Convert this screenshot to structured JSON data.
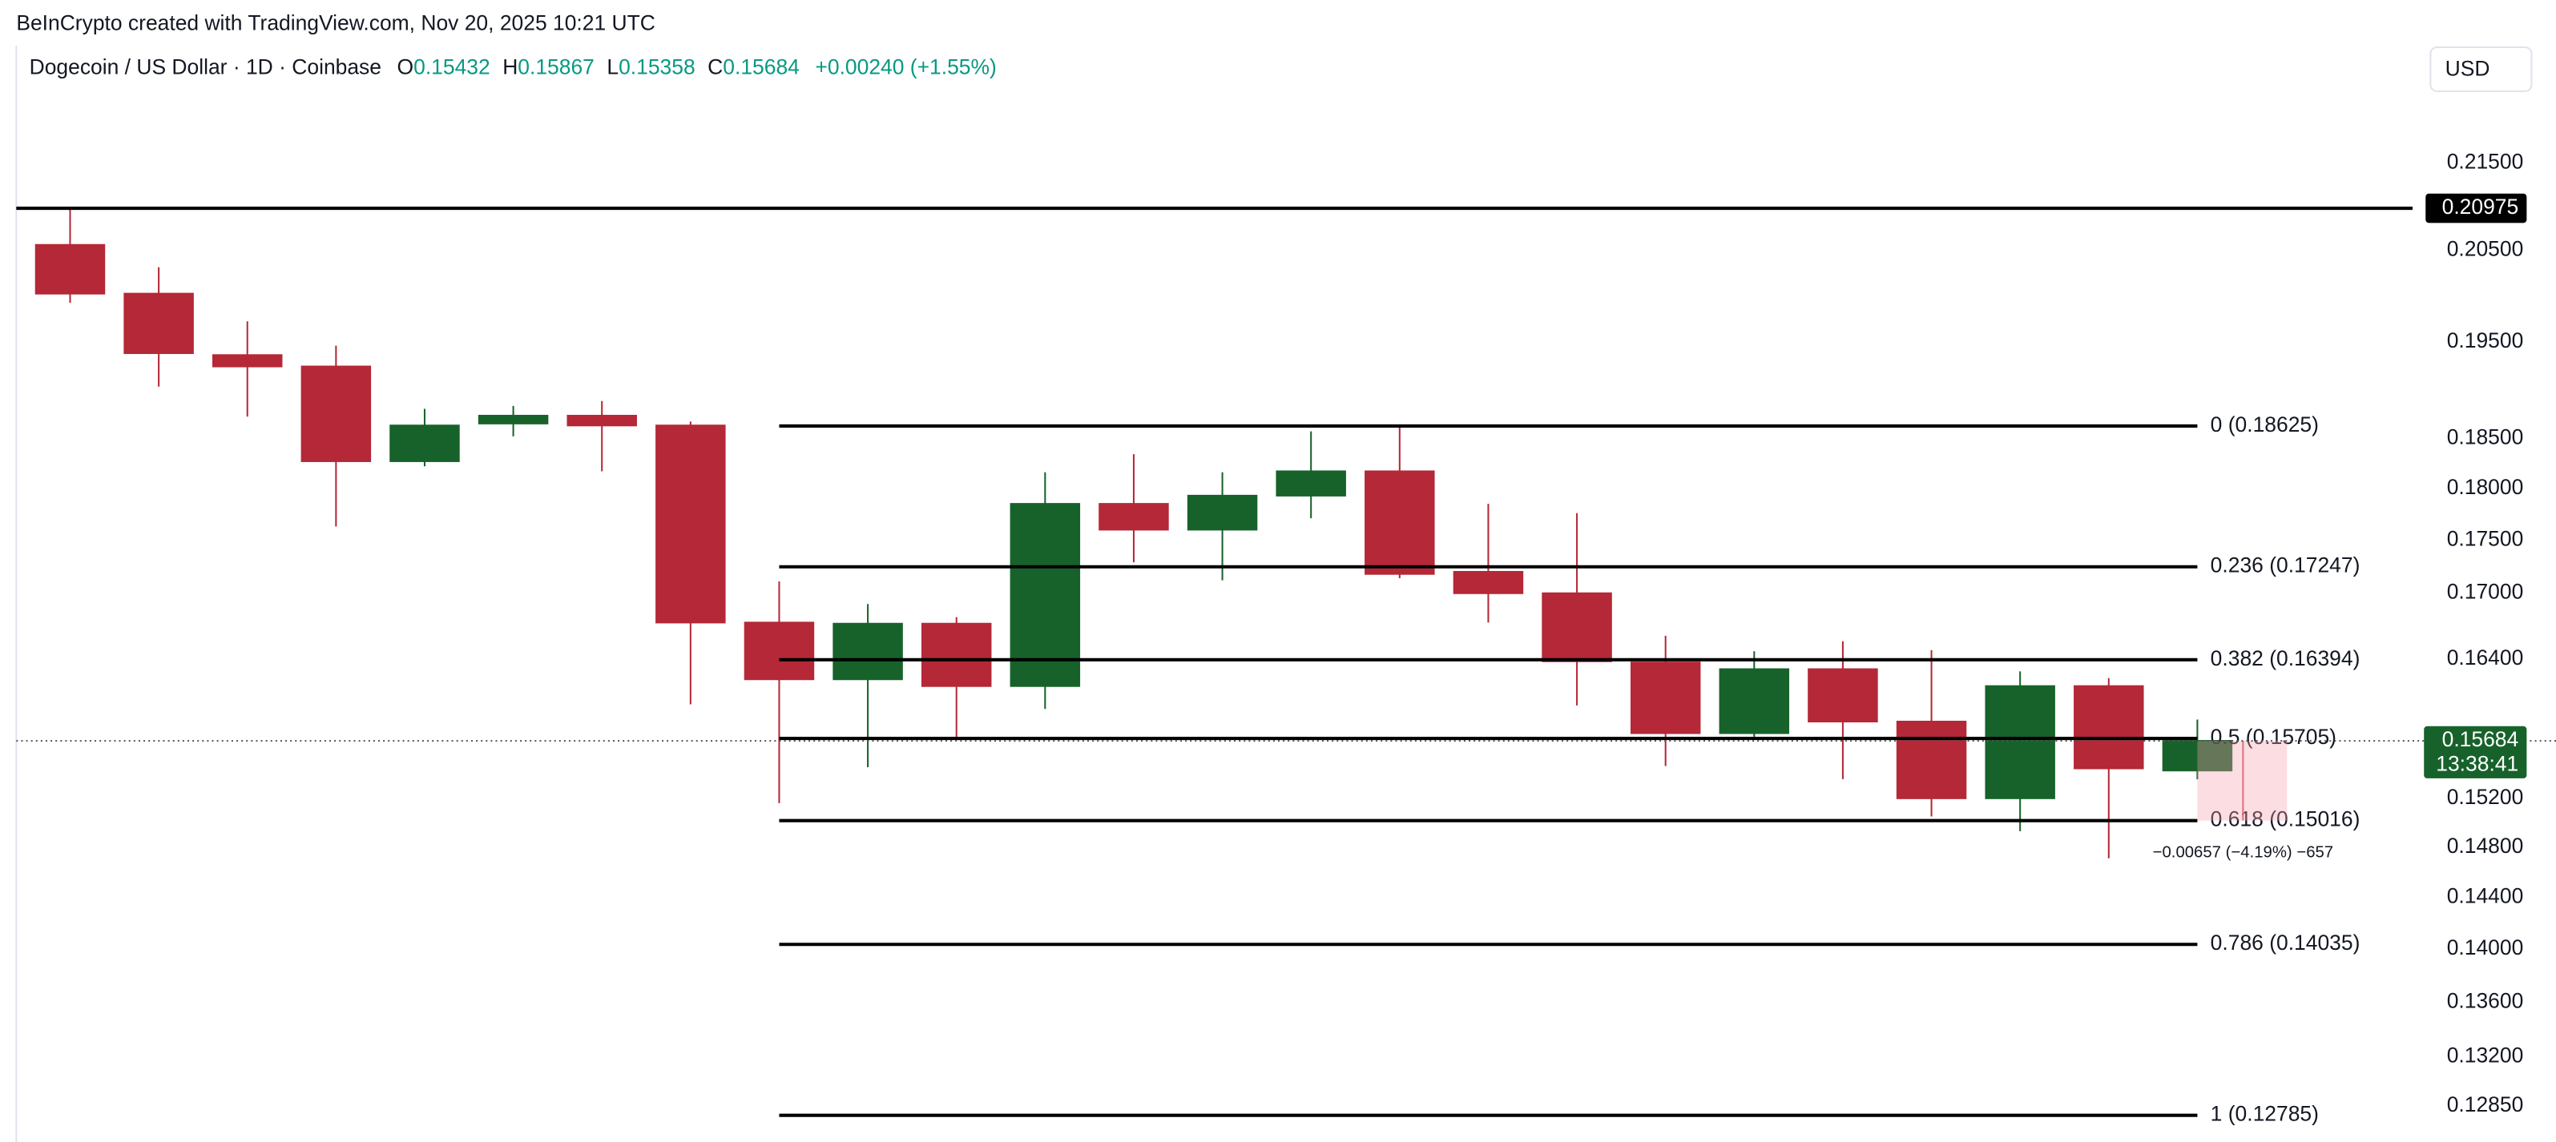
{
  "chart_data": {
    "type": "candlestick",
    "source": "BeInCrypto created with TradingView.com, Nov 20, 2025 10:21 UTC",
    "title": "Dogecoin / US Dollar · 1D · Coinbase",
    "ohlc_letters": [
      "O",
      "H",
      "L",
      "C"
    ],
    "change": "+0.00240 (+1.55%)",
    "currency": "USD",
    "up_color": "#17622b",
    "down_color": "#b42837",
    "log_scale": true,
    "ylim": [
      0.126,
      0.235
    ],
    "yticks": [
      {
        "value": 0.215,
        "label": "0.21500"
      },
      {
        "value": 0.205,
        "label": "0.20500"
      },
      {
        "value": 0.195,
        "label": "0.19500"
      },
      {
        "value": 0.185,
        "label": "0.18500"
      },
      {
        "value": 0.18,
        "label": "0.18000"
      },
      {
        "value": 0.175,
        "label": "0.17500"
      },
      {
        "value": 0.17,
        "label": "0.17000"
      },
      {
        "value": 0.164,
        "label": "0.16400"
      },
      {
        "value": 0.152,
        "label": "0.15200"
      },
      {
        "value": 0.148,
        "label": "0.14800"
      },
      {
        "value": 0.144,
        "label": "0.14400"
      },
      {
        "value": 0.14,
        "label": "0.14000"
      },
      {
        "value": 0.136,
        "label": "0.13600"
      },
      {
        "value": 0.132,
        "label": "0.13200"
      },
      {
        "value": 0.1285,
        "label": "0.12850"
      }
    ],
    "candles": {
      "open": [
        0.2056,
        0.2002,
        0.1936,
        0.1924,
        0.1827,
        0.1865,
        0.1873,
        0.1863,
        0.1673,
        0.1622,
        0.1672,
        0.1616,
        0.1785,
        0.176,
        0.1793,
        0.1817,
        0.172,
        0.17,
        0.1637,
        0.1575,
        0.1631,
        0.1585,
        0.152,
        0.1616,
        0.15432
      ],
      "high": [
        0.2097,
        0.2031,
        0.1972,
        0.1946,
        0.188,
        0.1883,
        0.1888,
        0.1867,
        0.1711,
        0.169,
        0.1678,
        0.1816,
        0.1834,
        0.1816,
        0.1857,
        0.1863,
        0.1785,
        0.1776,
        0.1661,
        0.1647,
        0.1656,
        0.1648,
        0.1629,
        0.1623,
        0.15867
      ],
      "low": [
        0.1992,
        0.1903,
        0.1872,
        0.1763,
        0.1822,
        0.1852,
        0.1817,
        0.16,
        0.1516,
        0.1546,
        0.1571,
        0.1596,
        0.1729,
        0.1712,
        0.1771,
        0.1714,
        0.1673,
        0.1599,
        0.1547,
        0.1572,
        0.1536,
        0.1505,
        0.1493,
        0.1471,
        0.15358
      ],
      "close": [
        0.2002,
        0.1938,
        0.1924,
        0.1827,
        0.1863,
        0.1873,
        0.1863,
        0.1673,
        0.1622,
        0.1672,
        0.1616,
        0.1785,
        0.176,
        0.1793,
        0.1817,
        0.1718,
        0.17,
        0.1638,
        0.1575,
        0.1631,
        0.1585,
        0.152,
        0.1616,
        0.1545,
        0.15684
      ]
    },
    "resistance": 0.20975,
    "countdown": "13:38:41",
    "fib_levels": [
      {
        "value": 0.18625,
        "label": "0 (0.18625)"
      },
      {
        "value": 0.17247,
        "label": "0.236 (0.17247)"
      },
      {
        "value": 0.16394,
        "label": "0.382 (0.16394)"
      },
      {
        "value": 0.15705,
        "label": "0.5 (0.15705)"
      },
      {
        "value": 0.15016,
        "label": "0.618 (0.15016)"
      },
      {
        "value": 0.14035,
        "label": "0.786 (0.14035)"
      },
      {
        "value": 0.12785,
        "label": "1 (0.12785)"
      }
    ],
    "measure_label": "−0.00657 (−4.19%) −657"
  }
}
